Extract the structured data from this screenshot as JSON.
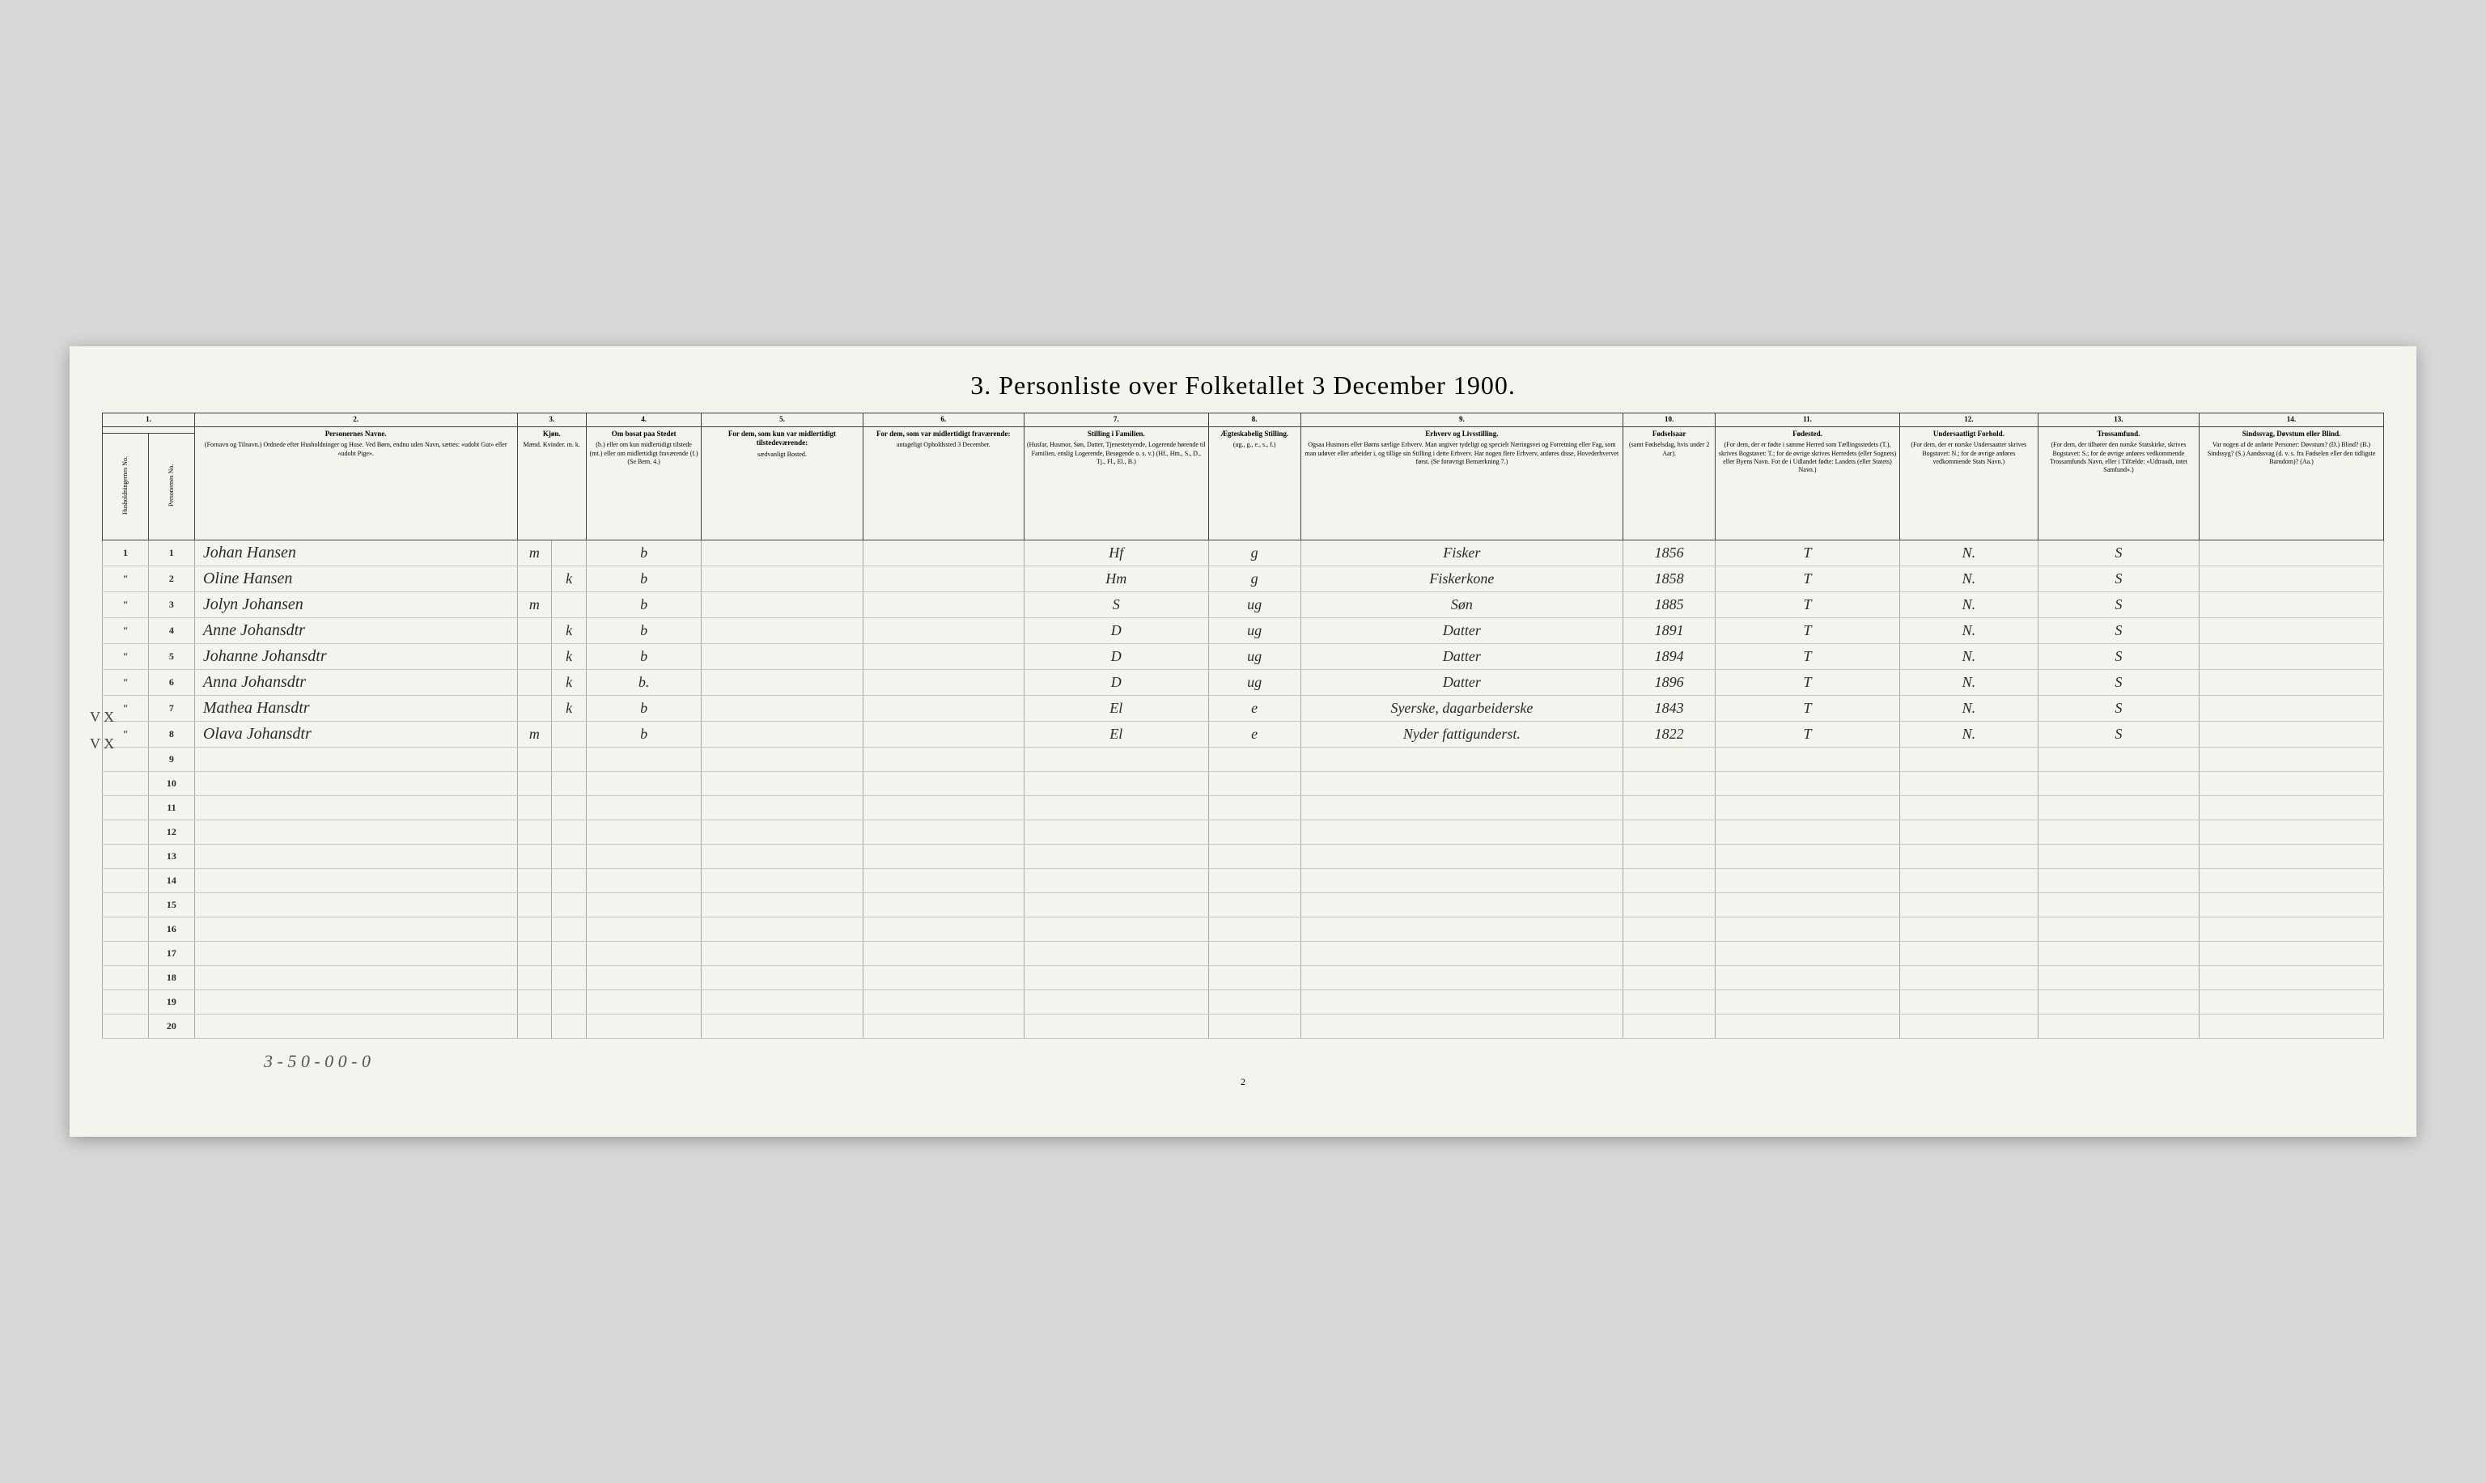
{
  "title": "3. Personliste over Folketallet 3 December 1900.",
  "columns": {
    "c1a": {
      "num": "1.",
      "title": "Husholdningernes No."
    },
    "c1b": {
      "num": "",
      "title": "Personernes No."
    },
    "c2": {
      "num": "2.",
      "title": "Personernes Navne.",
      "sub": "(Fornavn og Tilnavn.)\nOrdnede efter Husholdninger og Huse.\nVed Børn, endnu uden Navn, sættes: «udobt Gut» eller «udobt Pige»."
    },
    "c3": {
      "num": "3.",
      "title": "Kjøn.",
      "sub": "Mænd. Kvinder.\nm. k."
    },
    "c4": {
      "num": "4.",
      "title": "Om bosat\npaa Stedet",
      "sub": "(b.) eller om kun midlertidigt tilstede (mt.) eller om midlertidigt fraværende (f.)\n(Se Bem. 4.)"
    },
    "c5": {
      "num": "5.",
      "title": "For dem, som kun var midlertidigt tilstedeværende:",
      "sub": "sædvanligt Bosted."
    },
    "c6": {
      "num": "6.",
      "title": "For dem, som var midlertidigt fraværende:",
      "sub": "antageligt Opholdssted 3 December."
    },
    "c7": {
      "num": "7.",
      "title": "Stilling i Familien.",
      "sub": "(Husfar, Husmor, Søn, Datter, Tjenestetyende, Logerende hørende til Familien, enslig Logerende, Besøgende o. s. v.)\n(Hf., Hm., S., D., Tj., Fl., El., B.)"
    },
    "c8": {
      "num": "8.",
      "title": "Ægteskabelig Stilling.",
      "sub": "(ug., g., e., s., f.)"
    },
    "c9": {
      "num": "9.",
      "title": "Erhverv og Livsstilling.",
      "sub": "Ogsaa Husmors eller Børns særlige Erhverv. Man angiver tydeligt og specielt Næringsvei og Forretning eller Fag, som man udøver eller arbeider i, og tillige sin Stilling i dette Erhverv.\nHar nogen flere Erhverv, anføres disse, Hovederhvervet først.\n(Se forøvrigt Bemærkning 7.)"
    },
    "c10": {
      "num": "10.",
      "title": "Fødselsaar",
      "sub": "(samt Fødselsdag, hvis under 2 Aar)."
    },
    "c11": {
      "num": "11.",
      "title": "Fødested.",
      "sub": "(For dem, der er fødte i samme Herred som Tællingsstedets (T.), skrives Bogstavet: T.; for de øvrige skrives Herredets (eller Sognets) eller Byens Navn. For de i Udlandet fødte: Landets (eller Statets) Navn.)"
    },
    "c12": {
      "num": "12.",
      "title": "Undersaatligt Forhold.",
      "sub": "(For dem, der er norske Undersaatter skrives Bogstavet: N.; for de øvrige anføres vedkommende Stats Navn.)"
    },
    "c13": {
      "num": "13.",
      "title": "Trossamfund.",
      "sub": "(For dem, der tilhører den norske Statskirke, skrives Bogstavet: S.; for de øvrige anføres vedkommende Trossamfunds Navn, eller i Tilfælde: «Udtraadt, intet Samfund».)"
    },
    "c14": {
      "num": "14.",
      "title": "Sindssvag, Døvstum eller Blind.",
      "sub": "Var nogen af de anførte Personer:\nDøvstum? (D.)\nBlind? (B.)\nSindssyg? (S.)\nAandssvag (d. v. s. fra Fødselen eller den tidligste Barndom)? (Aa.)"
    }
  },
  "rows": [
    {
      "hh": "1",
      "pn": "1",
      "name": "Johan Hansen",
      "sex": "m",
      "res": "b",
      "c5": "",
      "c6": "",
      "family": "Hf",
      "marital": "g",
      "occupation": "Fisker",
      "year": "1856",
      "birthplace": "T",
      "subject": "N.",
      "faith": "S",
      "c14": "",
      "mark": ""
    },
    {
      "hh": "\"",
      "pn": "2",
      "name": "Oline Hansen",
      "sex": "k",
      "res": "b",
      "c5": "",
      "c6": "",
      "family": "Hm",
      "marital": "g",
      "occupation": "Fiskerkone",
      "year": "1858",
      "birthplace": "T",
      "subject": "N.",
      "faith": "S",
      "c14": "",
      "mark": ""
    },
    {
      "hh": "\"",
      "pn": "3",
      "name": "Jolyn Johansen",
      "sex": "m",
      "res": "b",
      "c5": "",
      "c6": "",
      "family": "S",
      "marital": "ug",
      "occupation": "Søn",
      "year": "1885",
      "birthplace": "T",
      "subject": "N.",
      "faith": "S",
      "c14": "",
      "mark": ""
    },
    {
      "hh": "\"",
      "pn": "4",
      "name": "Anne Johansdtr",
      "sex": "k",
      "res": "b",
      "c5": "",
      "c6": "",
      "family": "D",
      "marital": "ug",
      "occupation": "Datter",
      "year": "1891",
      "birthplace": "T",
      "subject": "N.",
      "faith": "S",
      "c14": "",
      "mark": ""
    },
    {
      "hh": "\"",
      "pn": "5",
      "name": "Johanne Johansdtr",
      "sex": "k",
      "res": "b",
      "c5": "",
      "c6": "",
      "family": "D",
      "marital": "ug",
      "occupation": "Datter",
      "year": "1894",
      "birthplace": "T",
      "subject": "N.",
      "faith": "S",
      "c14": "",
      "mark": ""
    },
    {
      "hh": "\"",
      "pn": "6",
      "name": "Anna Johansdtr",
      "sex": "k",
      "res": "b.",
      "c5": "",
      "c6": "",
      "family": "D",
      "marital": "ug",
      "occupation": "Datter",
      "year": "1896",
      "birthplace": "T",
      "subject": "N.",
      "faith": "S",
      "c14": "",
      "mark": ""
    },
    {
      "hh": "\"",
      "pn": "7",
      "name": "Mathea Hansdtr",
      "sex": "k",
      "res": "b",
      "c5": "",
      "c6": "",
      "family": "El",
      "marital": "e",
      "occupation": "Syerske, dagarbeiderske",
      "year": "1843",
      "birthplace": "T",
      "subject": "N.",
      "faith": "S",
      "c14": "",
      "mark": "V X"
    },
    {
      "hh": "\"",
      "pn": "8",
      "name": "Olava Johansdtr",
      "sex": "m",
      "res": "b",
      "c5": "",
      "c6": "",
      "family": "El",
      "marital": "e",
      "occupation": "Nyder fattigunderst.",
      "year": "1822",
      "birthplace": "T",
      "subject": "N.",
      "faith": "S",
      "c14": "",
      "mark": "V X"
    }
  ],
  "emptyRows": [
    "9",
    "10",
    "11",
    "12",
    "13",
    "14",
    "15",
    "16",
    "17",
    "18",
    "19",
    "20"
  ],
  "footerNote": "3 - 5 0 - 0   0 - 0",
  "pageNum": "2"
}
